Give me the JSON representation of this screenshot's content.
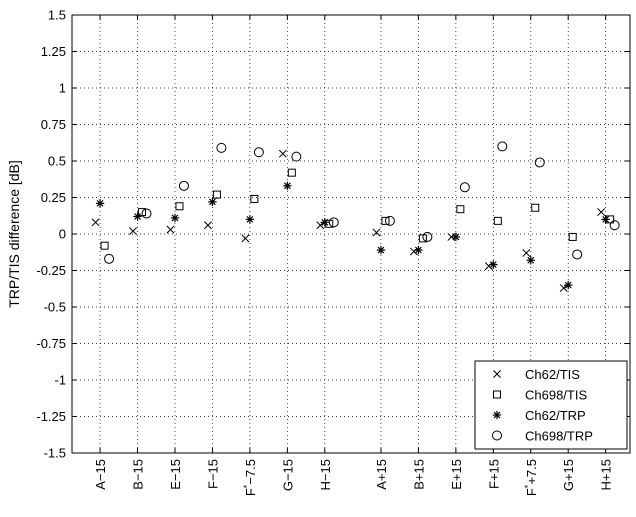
{
  "chart_data": {
    "type": "scatter",
    "ylabel": "TRP/TIS difference [dB]",
    "xlabel": "",
    "ylim": [
      -1.5,
      1.5
    ],
    "yticks": [
      -1.5,
      -1.25,
      -1,
      -0.75,
      -0.5,
      -0.25,
      0,
      0.25,
      0.5,
      0.75,
      1,
      1.25,
      1.5
    ],
    "ytick_labels": [
      "-1.5",
      "-1.25",
      "-1",
      "-0.75",
      "-0.5",
      "-0.25",
      "0",
      "0.25",
      "0.5",
      "0.75",
      "1",
      "1.25",
      "1.5"
    ],
    "grid": true,
    "legend_position": "bottom-right",
    "categories": [
      {
        "label": "A−15",
        "prime": false
      },
      {
        "label": "B−15",
        "prime": false
      },
      {
        "label": "E−15",
        "prime": false
      },
      {
        "label": "F−15",
        "prime": false
      },
      {
        "label": "−7.5",
        "prime": true,
        "letter": "F",
        "sup": "*"
      },
      {
        "label": "G−15",
        "prime": false
      },
      {
        "label": "H−15",
        "prime": false
      },
      {
        "label": "A+15",
        "prime": false
      },
      {
        "label": "B+15",
        "prime": false
      },
      {
        "label": "E+15",
        "prime": false
      },
      {
        "label": "F+15",
        "prime": false
      },
      {
        "label": "+7.5",
        "prime": true,
        "letter": "F",
        "sup": "*"
      },
      {
        "label": "G+15",
        "prime": false
      },
      {
        "label": "H+15",
        "prime": false
      }
    ],
    "category_positions": [
      1,
      2,
      3,
      4,
      5,
      6,
      7,
      8.5,
      9.5,
      10.5,
      11.5,
      12.5,
      13.5,
      14.5
    ],
    "xlim": [
      0.25,
      15.15
    ],
    "series": [
      {
        "name": "Ch62/TIS",
        "marker": "x",
        "offset": -0.12,
        "values": [
          0.08,
          0.02,
          0.03,
          0.06,
          -0.03,
          0.55,
          0.06,
          0.01,
          -0.12,
          -0.02,
          -0.22,
          -0.13,
          -0.37,
          0.15
        ]
      },
      {
        "name": "Ch698/TIS",
        "marker": "square",
        "offset": 0.12,
        "values": [
          -0.08,
          0.15,
          0.19,
          0.27,
          0.24,
          0.42,
          0.07,
          0.09,
          -0.03,
          0.17,
          0.09,
          0.18,
          -0.02,
          0.1
        ]
      },
      {
        "name": "Ch62/TRP",
        "marker": "star",
        "offset": 0.0,
        "values": [
          0.21,
          0.12,
          0.11,
          0.22,
          0.1,
          0.33,
          0.08,
          -0.11,
          -0.11,
          -0.02,
          -0.21,
          -0.18,
          -0.35,
          0.1
        ]
      },
      {
        "name": "Ch698/TRP",
        "marker": "circle",
        "offset": 0.24,
        "values": [
          -0.17,
          0.14,
          0.33,
          0.59,
          0.56,
          0.53,
          0.08,
          0.09,
          -0.02,
          0.32,
          0.6,
          0.49,
          -0.14,
          0.06
        ]
      }
    ]
  }
}
